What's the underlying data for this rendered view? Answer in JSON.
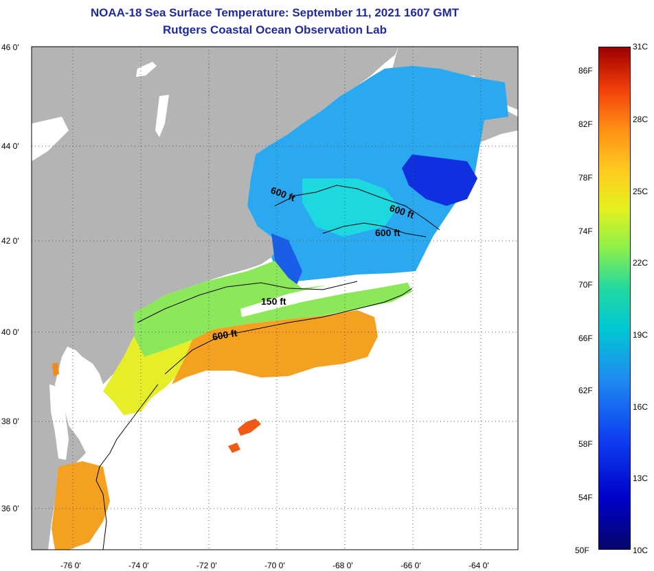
{
  "header": {
    "title_line1": "NOAA-18 Sea Surface Temperature:  September 11, 2021 1607 GMT",
    "title_line2": "Rutgers Coastal Ocean Observation Lab"
  },
  "map": {
    "lat_labels": [
      "46 0'",
      "44 0'",
      "42 0'",
      "40 0'",
      "38 0'",
      "36 0'"
    ],
    "lon_labels": [
      "-76 0'",
      "-74 0'",
      "-72 0'",
      "-70 0'",
      "-68 0'",
      "-66 0'",
      "-64 0'"
    ],
    "contour_labels": [
      "600 ft",
      "600 ft",
      "600 ft",
      "150 ft",
      "600 ft"
    ],
    "colors": {
      "land": "#b4b4b4",
      "ocean_nodata": "#ffffff",
      "cold": "#1030e0",
      "cool": "#2aa8f0",
      "mid": "#1ed8e0",
      "warm": "#e6ee2a",
      "hot": "#f4a020"
    }
  },
  "colorbar": {
    "fahrenheit_labels": [
      "86F",
      "82F",
      "78F",
      "74F",
      "70F",
      "66F",
      "62F",
      "58F",
      "54F",
      "50F"
    ],
    "celsius_labels": [
      "31C",
      "28C",
      "25C",
      "22C",
      "19C",
      "16C",
      "13C",
      "10C"
    ]
  }
}
